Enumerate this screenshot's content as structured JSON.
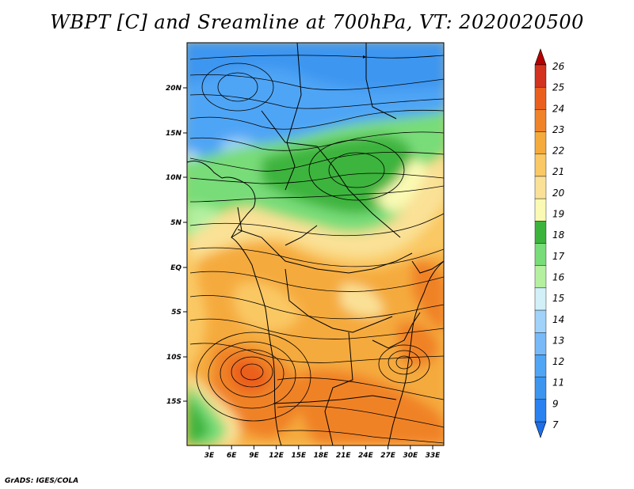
{
  "title": "WBPT [C] and Sreamline at 700hPa, VT: 2020020500",
  "credit": "GrADS: IGES/COLA",
  "lat_labels": [
    "20N",
    "15N",
    "10N",
    "5N",
    "EQ",
    "5S",
    "10S",
    "15S"
  ],
  "lon_labels": [
    "3E",
    "6E",
    "9E",
    "12E",
    "15E",
    "18E",
    "21E",
    "24E",
    "27E",
    "30E",
    "33E"
  ],
  "colorbar": {
    "labels": [
      "7",
      "9",
      "11",
      "12",
      "13",
      "14",
      "15",
      "16",
      "17",
      "18",
      "19",
      "20",
      "21",
      "22",
      "23",
      "24",
      "25",
      "26"
    ],
    "colors": [
      "#1e6ee6",
      "#2a82f0",
      "#3c96f0",
      "#50a5f5",
      "#78b9f8",
      "#a0d2fa",
      "#d2f0f8",
      "#b4f0a0",
      "#78dc78",
      "#3cb43c",
      "#fafab4",
      "#fae196",
      "#fac864",
      "#f5aa3c",
      "#f08228",
      "#eb5f1e",
      "#d2321e",
      "#b40000"
    ],
    "under_color": "#1e6ee6",
    "over_color": "#b40000"
  }
}
